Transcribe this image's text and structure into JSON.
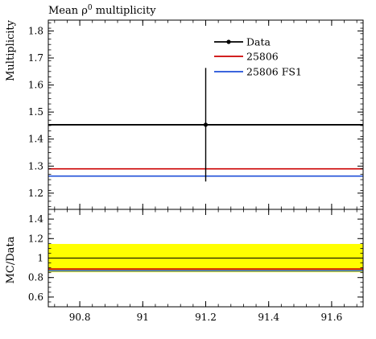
{
  "chart_data": {
    "type": "line",
    "title": "Mean ρ",
    "title_superscript": "0",
    "title_suffix": " multiplicity",
    "xlim": [
      90.7,
      91.7
    ],
    "x_ticks": [
      90.8,
      91.0,
      91.2,
      91.4,
      91.6
    ],
    "x_tick_labels": [
      "90.8",
      "91",
      "91.2",
      "91.4",
      "91.6"
    ],
    "legend_position": "top-right",
    "main": {
      "ylabel": "Multiplicity",
      "ylim": [
        1.14,
        1.84
      ],
      "y_ticks": [
        1.2,
        1.3,
        1.4,
        1.5,
        1.6,
        1.7,
        1.8
      ],
      "y_tick_labels": [
        "1.2",
        "1.3",
        "1.4",
        "1.5",
        "1.6",
        "1.7",
        "1.8"
      ],
      "series": [
        {
          "name": "Data",
          "color": "#000000",
          "x": 91.2,
          "y": 1.453,
          "yerr_low": 0.21,
          "yerr_high": 0.21,
          "x_range": [
            90.7,
            91.7
          ]
        },
        {
          "name": "25806",
          "color": "#cc0000",
          "y": 1.29,
          "x_range": [
            90.7,
            91.7
          ]
        },
        {
          "name": "25806 FS1",
          "color": "#1f4fd8",
          "y": 1.263,
          "x_range": [
            90.7,
            91.7
          ]
        }
      ]
    },
    "ratio": {
      "ylabel": "MC/Data",
      "ylim": [
        0.5,
        1.5
      ],
      "y_ticks": [
        0.6,
        0.8,
        1.0,
        1.2,
        1.4
      ],
      "y_tick_labels": [
        "0.6",
        "0.8",
        "1",
        "1.2",
        "1.4"
      ],
      "band": {
        "low": 0.855,
        "high": 1.145,
        "color": "#ffff00"
      },
      "reference": 1.0,
      "series": [
        {
          "name": "25806",
          "color": "#cc0000",
          "y": 0.888
        },
        {
          "name": "25806 FS1",
          "color": "#1f4fd8",
          "y": 0.869
        }
      ]
    }
  }
}
